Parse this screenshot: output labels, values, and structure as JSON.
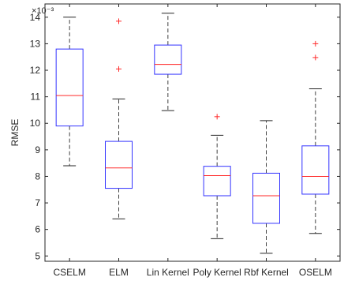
{
  "chart_data": {
    "type": "boxplot",
    "title": "",
    "xlabel": "",
    "ylabel": "RMSE",
    "y_exponent": "×10⁻³",
    "ylim": [
      4.8,
      14.5
    ],
    "yticks": [
      5,
      6,
      7,
      8,
      9,
      10,
      11,
      12,
      13,
      14
    ],
    "grid": false,
    "categories": [
      "CSELM",
      "ELM",
      "Lin Kernel",
      "Poly Kernel",
      "Rbf Kernel",
      "OSELM"
    ],
    "boxes": [
      {
        "name": "CSELM",
        "whisker_low": 8.4,
        "q1": 9.9,
        "median": 11.05,
        "q3": 12.8,
        "whisker_high": 14.0,
        "outliers": []
      },
      {
        "name": "ELM",
        "whisker_low": 6.4,
        "q1": 7.55,
        "median": 8.32,
        "q3": 9.32,
        "whisker_high": 10.92,
        "outliers": [
          12.05,
          13.85
        ]
      },
      {
        "name": "Lin Kernel",
        "whisker_low": 10.48,
        "q1": 11.85,
        "median": 12.22,
        "q3": 12.95,
        "whisker_high": 14.15,
        "outliers": []
      },
      {
        "name": "Poly Kernel",
        "whisker_low": 5.65,
        "q1": 7.27,
        "median": 8.03,
        "q3": 8.38,
        "whisker_high": 9.55,
        "outliers": [
          10.25
        ]
      },
      {
        "name": "Rbf Kernel",
        "whisker_low": 5.1,
        "q1": 6.23,
        "median": 7.27,
        "q3": 8.12,
        "whisker_high": 10.1,
        "outliers": []
      },
      {
        "name": "OSELM",
        "whisker_low": 5.85,
        "q1": 7.33,
        "median": 8.0,
        "q3": 9.15,
        "whisker_high": 11.3,
        "outliers": [
          12.48,
          13.0
        ]
      }
    ],
    "colors": {
      "box": "#3333ff",
      "median": "#ff2a2a",
      "outlier": "#ff2a2a",
      "whisker": "#404040",
      "axis": "#262626"
    }
  }
}
